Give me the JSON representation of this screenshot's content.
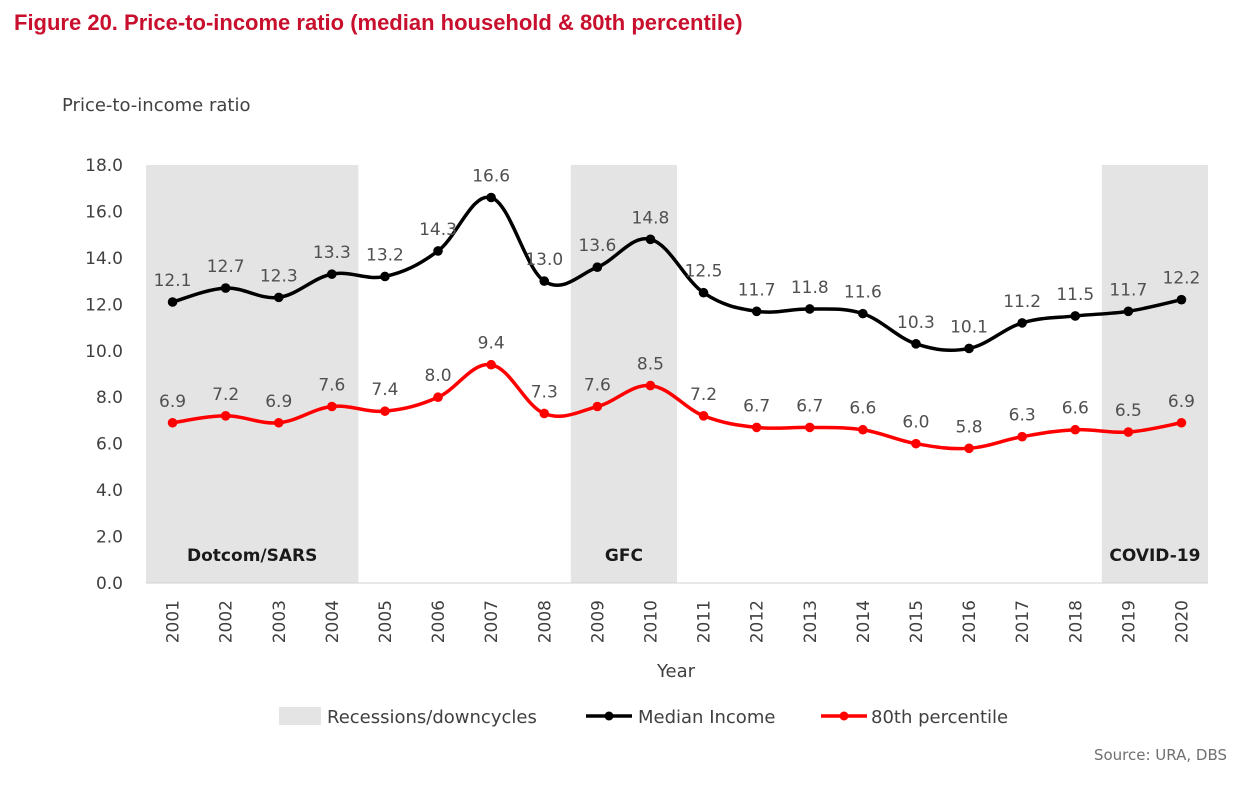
{
  "figure_title": "Figure 20. Price-to-income ratio (median household & 80th percentile)",
  "source": "Source: URA, DBS",
  "colors": {
    "median": "#000000",
    "p80": "#ff0000",
    "shade": "#e4e4e4",
    "title": "#c8102e"
  },
  "chart_data": {
    "type": "line",
    "title": "Figure 20. Price-to-income ratio (median household & 80th percentile)",
    "xlabel": "Year",
    "ylabel": "Price-to-income ratio",
    "ylim": [
      0,
      18
    ],
    "y_ticks": [
      "0.0",
      "2.0",
      "4.0",
      "6.0",
      "8.0",
      "10.0",
      "12.0",
      "14.0",
      "16.0",
      "18.0"
    ],
    "categories": [
      "2001",
      "2002",
      "2003",
      "2004",
      "2005",
      "2006",
      "2007",
      "2008",
      "2009",
      "2010",
      "2011",
      "2012",
      "2013",
      "2014",
      "2015",
      "2016",
      "2017",
      "2018",
      "2019",
      "2020"
    ],
    "series": [
      {
        "name": "Median Income",
        "values": [
          12.1,
          12.7,
          12.3,
          13.3,
          13.2,
          14.3,
          16.6,
          13.0,
          13.6,
          14.8,
          12.5,
          11.7,
          11.8,
          11.6,
          10.3,
          10.1,
          11.2,
          11.5,
          11.7,
          12.2
        ],
        "labels": [
          "12.1",
          "12.7",
          "12.3",
          "13.3",
          "13.2",
          "14.3",
          "16.6",
          "13.0",
          "13.6",
          "14.8",
          "12.5",
          "11.7",
          "11.8",
          "11.6",
          "10.3",
          "10.1",
          "11.2",
          "11.5",
          "11.7",
          "12.2"
        ]
      },
      {
        "name": "80th percentile",
        "values": [
          6.9,
          7.2,
          6.9,
          7.6,
          7.4,
          8.0,
          9.4,
          7.3,
          7.6,
          8.5,
          7.2,
          6.7,
          6.7,
          6.6,
          6.0,
          5.8,
          6.3,
          6.6,
          6.5,
          6.9
        ],
        "labels": [
          "6.9",
          "7.2",
          "6.9",
          "7.6",
          "7.4",
          "8.0",
          "9.4",
          "7.3",
          "7.6",
          "8.5",
          "7.2",
          "6.7",
          "6.7",
          "6.6",
          "6.0",
          "5.8",
          "6.3",
          "6.6",
          "6.5",
          "6.9"
        ]
      }
    ],
    "shaded_periods": [
      {
        "label": "Dotcom/SARS",
        "start": "2001",
        "end": "2004"
      },
      {
        "label": "GFC",
        "start": "2009",
        "end": "2010"
      },
      {
        "label": "COVID-19",
        "start": "2019",
        "end": "2020"
      }
    ],
    "legend": [
      "Recessions/downcycles",
      "Median Income",
      "80th percentile"
    ],
    "legend_position": "bottom"
  }
}
